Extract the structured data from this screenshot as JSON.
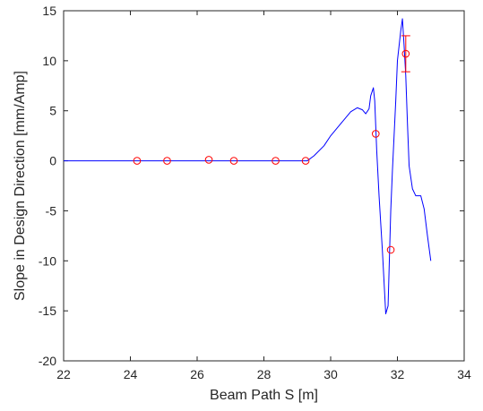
{
  "chart_data": {
    "type": "line",
    "xlabel": "Beam Path S [m]",
    "ylabel": "Slope in Design Direction [mm/Amp]",
    "xlim": [
      22,
      34
    ],
    "ylim": [
      -20,
      15
    ],
    "xticks": [
      22,
      24,
      26,
      28,
      30,
      32,
      34
    ],
    "yticks": [
      -20,
      -15,
      -10,
      -5,
      0,
      5,
      10,
      15
    ],
    "grid": false,
    "colors": {
      "model": "#0000ff",
      "measured": "#ff0000",
      "axes": "#262626"
    },
    "series": [
      {
        "style": "line",
        "x": [
          22,
          29.3,
          29.5,
          29.8,
          30.0,
          30.3,
          30.6,
          30.8,
          30.95,
          31.05,
          31.15,
          31.2,
          31.28,
          31.32,
          31.38,
          31.45,
          31.55,
          31.65,
          31.72,
          31.8,
          31.85,
          31.95,
          32.0,
          32.1,
          32.15,
          32.2,
          32.25,
          32.3,
          32.35,
          32.45,
          32.55,
          32.6,
          32.7,
          32.8,
          32.9,
          33.0
        ],
        "y": [
          0,
          0,
          0.5,
          1.5,
          2.5,
          3.7,
          4.9,
          5.3,
          5.1,
          4.7,
          5.2,
          6.5,
          7.3,
          6.0,
          1.0,
          -3.5,
          -9.0,
          -15.3,
          -14.5,
          -5.0,
          -1.0,
          6.0,
          10.0,
          13.0,
          14.2,
          11.5,
          8.5,
          3.8,
          -0.5,
          -2.8,
          -3.5,
          -3.5,
          -3.5,
          -4.8,
          -7.5,
          -10.0
        ]
      },
      {
        "style": "scatter",
        "x": [
          24.2,
          25.1,
          26.35,
          27.1,
          28.35,
          29.25,
          31.35,
          31.8,
          32.25
        ],
        "y": [
          0.0,
          0.0,
          0.1,
          0.0,
          0.0,
          0.0,
          2.7,
          -8.9,
          10.7
        ],
        "error": [
          0,
          0,
          0,
          0,
          0,
          0,
          0,
          0,
          1.8
        ]
      }
    ]
  }
}
